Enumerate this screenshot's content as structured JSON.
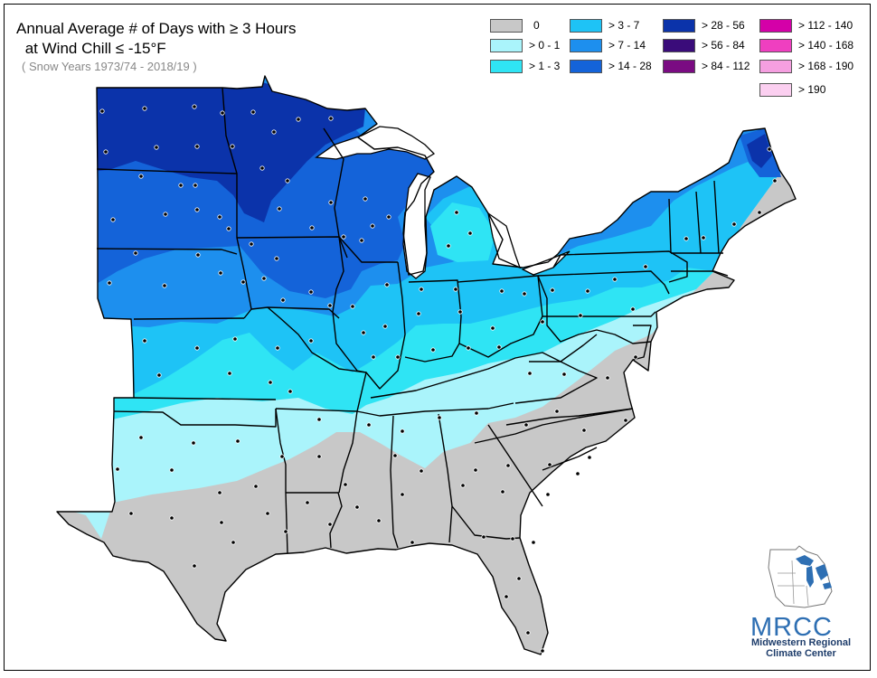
{
  "title_line1": "Annual Average # of Days with ≥ 3 Hours",
  "title_line2": " at Wind Chill ≤ -15°F",
  "subtitle": "( Snow Years 1973/74 - 2018/19 )",
  "legend": [
    {
      "label": "0",
      "color": "#c8c8c8"
    },
    {
      "label": "> 0 - 1",
      "color": "#aaf4fb"
    },
    {
      "label": "> 1 - 3",
      "color": "#2fe4f4"
    },
    {
      "label": "> 3 - 7",
      "color": "#1ec3f6"
    },
    {
      "label": "> 7 - 14",
      "color": "#1d8fee"
    },
    {
      "label": "> 14 - 28",
      "color": "#1463d9"
    },
    {
      "label": "> 28 - 56",
      "color": "#0b33aa"
    },
    {
      "label": "> 56 - 84",
      "color": "#3a0c7a"
    },
    {
      "label": "> 84 - 112",
      "color": "#7a0b82"
    },
    {
      "label": "> 112 - 140",
      "color": "#d400a8"
    },
    {
      "label": "> 140 - 168",
      "color": "#ef3fc0"
    },
    {
      "label": "> 168 - 190",
      "color": "#f59fe0"
    },
    {
      "label": "> 190",
      "color": "#fbcff0"
    }
  ],
  "logo": {
    "name": "MRCC",
    "line1": "Midwestern Regional",
    "line2": "Climate Center"
  }
}
